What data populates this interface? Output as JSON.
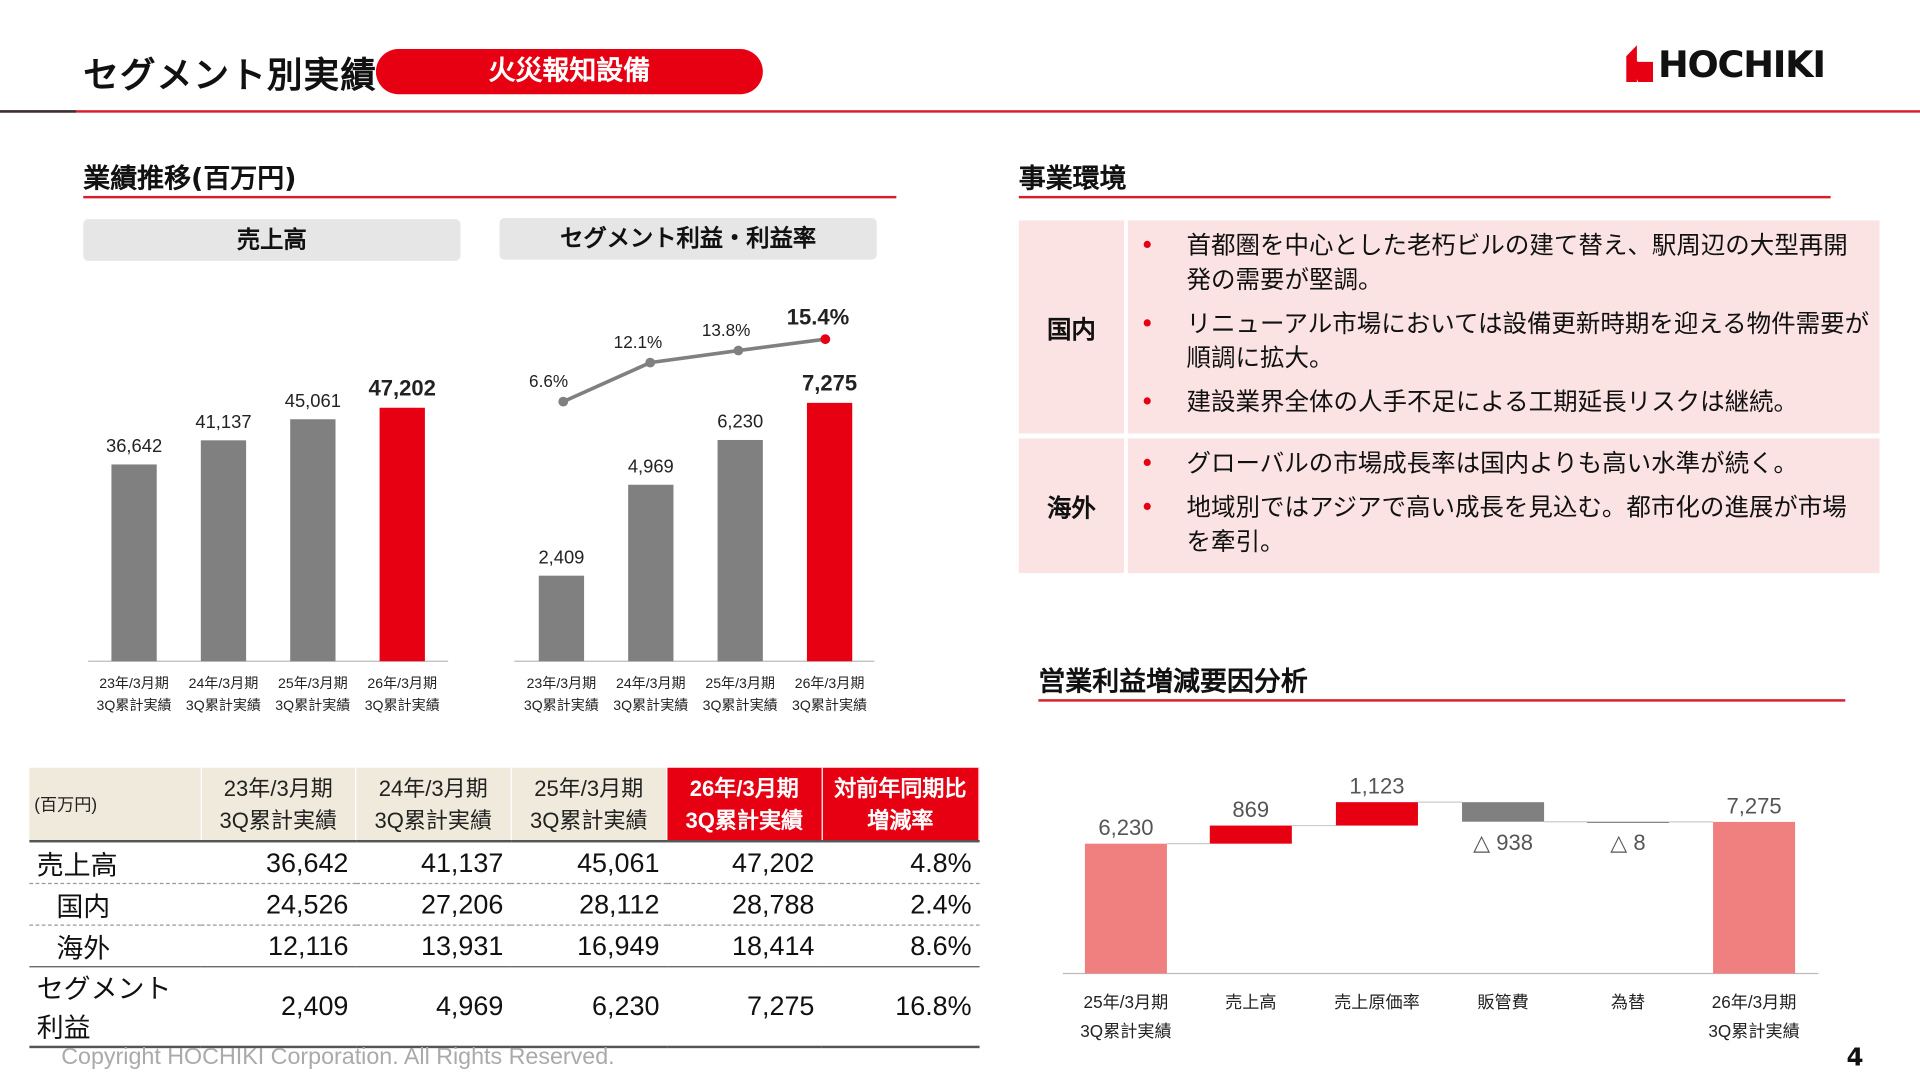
{
  "header": {
    "title": "セグメント別実績",
    "segment_badge": "火災報知設備",
    "logo": "HOCHIKI"
  },
  "colors": {
    "accent": "#e60012",
    "bar_gray": "#808080",
    "waterfall_pink": "#f08080"
  },
  "performance": {
    "title": "業績推移(百万円)",
    "tab_sales": "売上高",
    "tab_profit": "セグメント利益・利益率"
  },
  "chart_data": [
    {
      "type": "bar",
      "title": "売上高",
      "categories": [
        "23年/3月期\n3Q累計実績",
        "24年/3月期\n3Q累計実績",
        "25年/3月期\n3Q累計実績",
        "26年/3月期\n3Q累計実績"
      ],
      "values": [
        36642,
        41137,
        45061,
        47202
      ],
      "labels": [
        "36,642",
        "41,137",
        "45,061",
        "47,202"
      ],
      "highlight_last": true
    },
    {
      "type": "bar+line",
      "title": "セグメント利益・利益率",
      "categories": [
        "23年/3月期\n3Q累計実績",
        "24年/3月期\n3Q累計実績",
        "25年/3月期\n3Q累計実績",
        "26年/3月期\n3Q累計実績"
      ],
      "values": [
        2409,
        4969,
        6230,
        7275
      ],
      "labels": [
        "2,409",
        "4,969",
        "6,230",
        "7,275"
      ],
      "margin": [
        6.6,
        12.1,
        13.8,
        15.4
      ],
      "margin_labels": [
        "6.6%",
        "12.1%",
        "13.8%",
        "15.4%"
      ],
      "highlight_last": true
    },
    {
      "type": "waterfall",
      "title": "営業利益増減要因分析",
      "categories": [
        "25年/3月期\n3Q累計実績",
        "売上高",
        "売上原価率",
        "販管費",
        "為替",
        "26年/3月期\n3Q累計実績"
      ],
      "values": [
        6230,
        869,
        1123,
        -938,
        -8,
        7275
      ],
      "labels": [
        "6,230",
        "869",
        "1,123",
        "△ 938",
        "△ 8",
        "7,275"
      ]
    }
  ],
  "table": {
    "unit": "(百万円)",
    "headers": [
      "23年/3月期\n3Q累計実績",
      "24年/3月期\n3Q累計実績",
      "25年/3月期\n3Q累計実績",
      "26年/3月期\n3Q累計実績",
      "対前年同期比\n増減率"
    ],
    "rows": [
      {
        "label": "売上高",
        "values": [
          "36,642",
          "41,137",
          "45,061",
          "47,202",
          "4.8%"
        ]
      },
      {
        "label": "国内",
        "values": [
          "24,526",
          "27,206",
          "28,112",
          "28,788",
          "2.4%"
        ]
      },
      {
        "label": "海外",
        "values": [
          "12,116",
          "13,931",
          "16,949",
          "18,414",
          "8.6%"
        ]
      },
      {
        "label": "セグメント利益",
        "values": [
          "2,409",
          "4,969",
          "6,230",
          "7,275",
          "16.8%"
        ]
      }
    ]
  },
  "environment": {
    "title": "事業環境",
    "sections": [
      {
        "label": "国内",
        "items": [
          "首都圏を中心とした老朽ビルの建て替え、駅周辺の大型再開発の需要が堅調。",
          "リニューアル市場においては設備更新時期を迎える物件需要が順調に拡大。",
          "建設業界全体の人手不足による工期延長リスクは継続。"
        ]
      },
      {
        "label": "海外",
        "items": [
          "グローバルの市場成長率は国内よりも高い水準が続く。",
          "地域別ではアジアで高い成長を見込む。都市化の進展が市場を牽引。"
        ]
      }
    ]
  },
  "waterfall_title": "営業利益増減要因分析",
  "footer": {
    "copyright": "Copyright HOCHIKI Corporation. All Rights Reserved.",
    "page": "4"
  }
}
